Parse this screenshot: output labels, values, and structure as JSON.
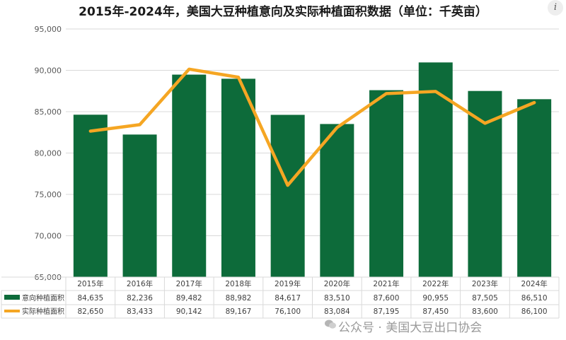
{
  "chart_data": {
    "type": "bar",
    "title": "2015年-2024年，美国大豆种植意向及实际种植面积数据（单位：千英亩）",
    "categories": [
      "2015年",
      "2016年",
      "2017年",
      "2018年",
      "2019年",
      "2020年",
      "2021年",
      "2022年",
      "2023年",
      "2024年"
    ],
    "series": [
      {
        "name": "意向种植面积",
        "type": "bar",
        "color": "#0d6b3a",
        "values": [
          84635,
          82236,
          89482,
          88982,
          84617,
          83510,
          87600,
          90955,
          87505,
          86510
        ],
        "labels": [
          "84,635",
          "82,236",
          "89,482",
          "88,982",
          "84,617",
          "83,510",
          "87,600",
          "90,955",
          "87,505",
          "86,510"
        ]
      },
      {
        "name": "实际种植面积",
        "type": "line",
        "color": "#f5a623",
        "values": [
          82650,
          83433,
          90142,
          89167,
          76100,
          83084,
          87195,
          87450,
          83600,
          86100
        ],
        "labels": [
          "82,650",
          "83,433",
          "90,142",
          "89,167",
          "76,100",
          "83,084",
          "87,195",
          "87,450",
          "83,600",
          "86,100"
        ]
      }
    ],
    "ylim": [
      65000,
      95000
    ],
    "yticks": [
      65000,
      70000,
      75000,
      80000,
      85000,
      90000,
      95000
    ],
    "ytick_labels": [
      "65,000",
      "70,000",
      "75,000",
      "80,000",
      "85,000",
      "90,000",
      "95,000"
    ],
    "grid": true,
    "legend": "data-table"
  },
  "watermark": "公众号 · 美国大豆出口协会",
  "info_icon": "i"
}
